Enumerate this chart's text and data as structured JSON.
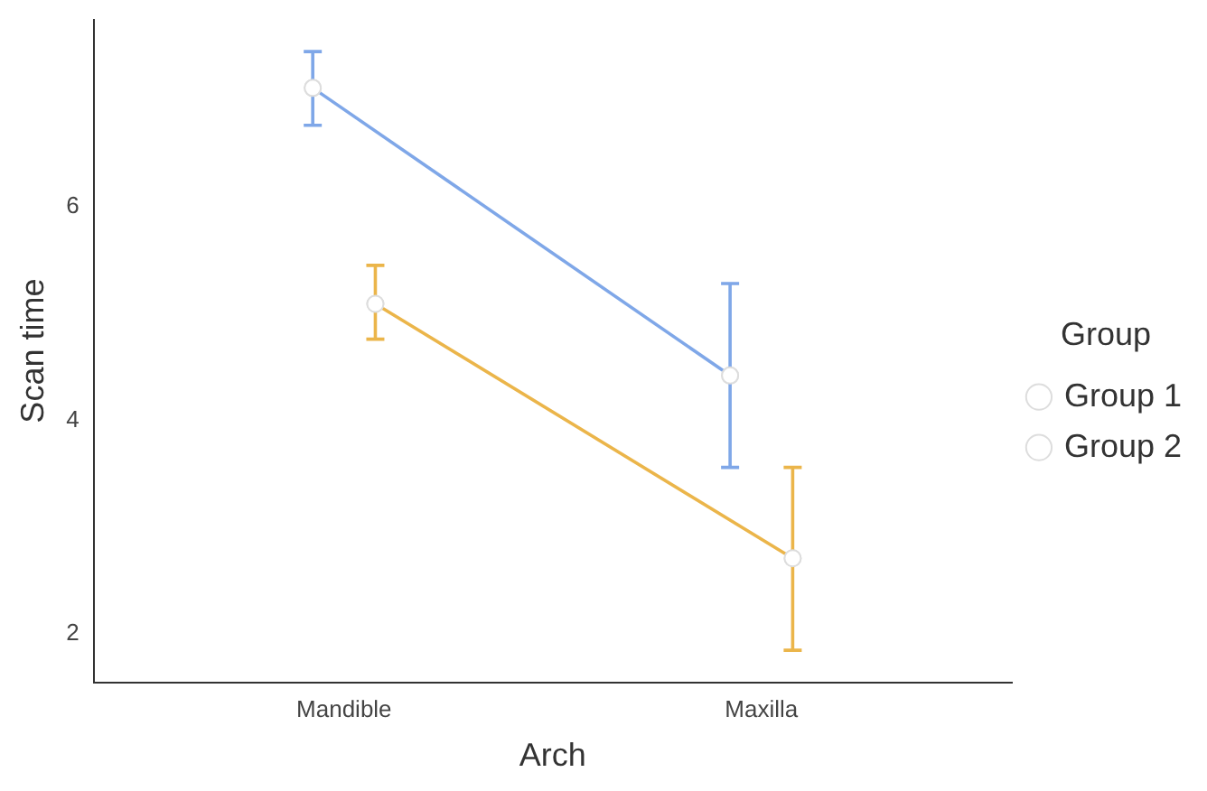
{
  "chart_data": {
    "type": "line",
    "xlabel": "Arch",
    "ylabel": "Scan time",
    "legend_title": "Group",
    "categories": [
      "Mandible",
      "Maxilla"
    ],
    "series": [
      {
        "name": "Group 1",
        "color": "#7fa7e8",
        "values": [
          7.11,
          4.42
        ],
        "errors": [
          [
            6.76,
            7.45
          ],
          [
            3.56,
            5.28
          ]
        ]
      },
      {
        "name": "Group 2",
        "color": "#ebb54a",
        "values": [
          5.09,
          2.71
        ],
        "errors": [
          [
            4.76,
            5.45
          ],
          [
            1.85,
            3.56
          ]
        ]
      }
    ],
    "ylim": [
      1.55,
      7.75
    ],
    "yticks": [
      2,
      4,
      6
    ],
    "grid": false,
    "legend": "right",
    "marker": "circle",
    "line_style": "solid"
  }
}
